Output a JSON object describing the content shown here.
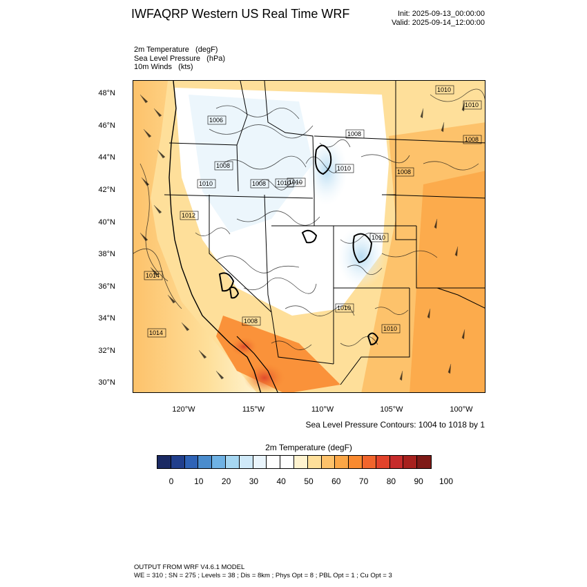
{
  "header": {
    "title": "IWFAQRP Western US Real Time WRF",
    "init": "Init: 2025-09-13_00:00:00",
    "valid": "Valid: 2025-09-14_12:00:00"
  },
  "fields": {
    "temperature": "2m Temperature   (degF)",
    "pressure": "Sea Level Pressure   (hPa)",
    "winds": "10m Winds   (kts)"
  },
  "map": {
    "lat_labels": [
      "48°N",
      "46°N",
      "44°N",
      "42°N",
      "40°N",
      "38°N",
      "36°N",
      "34°N",
      "32°N",
      "30°N"
    ],
    "lon_labels": [
      "120°W",
      "115°W",
      "110°W",
      "105°W",
      "100°W"
    ],
    "pressure_labels": [
      "1010",
      "1010",
      "1008",
      "1006",
      "1008",
      "1008",
      "1010",
      "1008",
      "1010",
      "1010",
      "1012",
      "1014",
      "1014",
      "1010",
      "1010",
      "1008",
      "1010",
      "1008",
      "1010"
    ],
    "contour_caption": "Sea Level Pressure Contours: 1004 to 1018 by 1"
  },
  "colorbar": {
    "title": "2m Temperature  (degF)",
    "labels": [
      "0",
      "10",
      "20",
      "30",
      "40",
      "50",
      "60",
      "70",
      "80",
      "90",
      "100"
    ],
    "colors": [
      "#1b2a63",
      "#213f8c",
      "#2f63b6",
      "#4a8ccd",
      "#6fb2e4",
      "#a6d7f2",
      "#cfe9f8",
      "#eaf5fc",
      "#ffffff",
      "#ffffff",
      "#fff3cf",
      "#fedf9a",
      "#fdc26b",
      "#fba747",
      "#f98a30",
      "#f1652c",
      "#e2432b",
      "#c62b2b",
      "#a7211e",
      "#7e1a17"
    ]
  },
  "footer": {
    "line1": "OUTPUT FROM WRF V4.6.1 MODEL",
    "line2": "WE = 310 ; SN = 275 ; Levels = 38 ; Dis = 8km ; Phys Opt = 8 ; PBL Opt = 1 ; Cu Opt = 3"
  }
}
